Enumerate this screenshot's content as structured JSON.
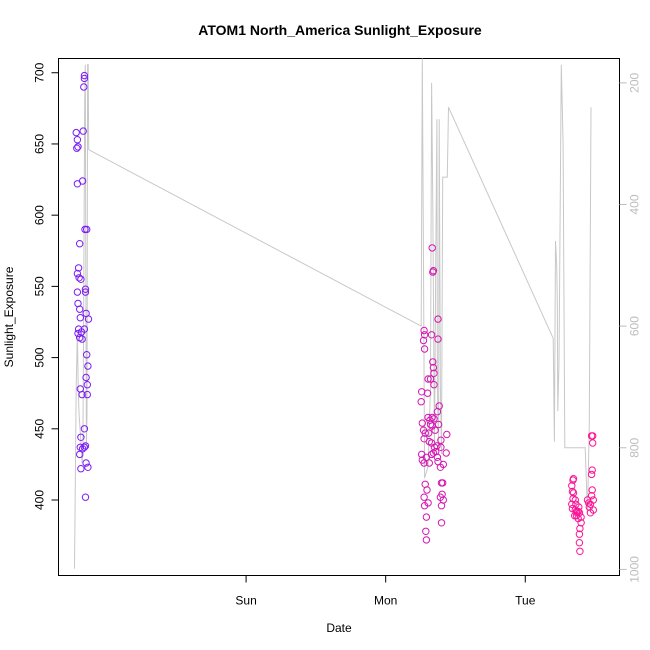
{
  "chart_data": {
    "type": "scatter",
    "title": "ATOM1 North_America Sunlight_Exposure",
    "xlabel": "Date",
    "ylabel": "Sunlight_Exposure",
    "x_ticks": [
      "Sun",
      "Mon",
      "Tue"
    ],
    "y_ticks_left": [
      "400",
      "450",
      "500",
      "550",
      "600",
      "650",
      "700"
    ],
    "y_ticks_right": [
      "200",
      "400",
      "600",
      "800",
      "1000"
    ],
    "ylim_left": [
      347,
      710
    ],
    "ylim_right": [
      1010,
      160
    ],
    "x_unit": "hours_since_sat_00",
    "xlim": [
      -8.25,
      88.2
    ],
    "grid": false,
    "colors": {
      "series_start": "#7a1cf6",
      "series_end": "#ff1493",
      "line": "#c8c8c8",
      "axis": "#000000",
      "right_axis": "#bdbdbd"
    },
    "scatter": [
      [
        -5.2,
        658
      ],
      [
        -5.0,
        653
      ],
      [
        -5.1,
        647
      ],
      [
        -4.9,
        648
      ],
      [
        -5.0,
        622
      ],
      [
        -4.6,
        580
      ],
      [
        -4.8,
        563
      ],
      [
        -5.0,
        559
      ],
      [
        -4.7,
        556
      ],
      [
        -4.4,
        555
      ],
      [
        -5.0,
        546
      ],
      [
        -4.9,
        538
      ],
      [
        -4.6,
        534
      ],
      [
        -4.5,
        528
      ],
      [
        -4.8,
        520
      ],
      [
        -4.3,
        518
      ],
      [
        -4.9,
        517
      ],
      [
        -4.6,
        514
      ],
      [
        -4.2,
        513
      ],
      [
        -4.5,
        478
      ],
      [
        -4.2,
        474
      ],
      [
        -4.4,
        444
      ],
      [
        -4.5,
        437
      ],
      [
        -4.6,
        432
      ],
      [
        -4.1,
        436
      ],
      [
        -4.4,
        422
      ],
      [
        -3.8,
        696
      ],
      [
        -3.8,
        698
      ],
      [
        -3.9,
        690
      ],
      [
        -4.0,
        659
      ],
      [
        -4.1,
        624
      ],
      [
        -3.7,
        590
      ],
      [
        -3.4,
        590
      ],
      [
        -3.6,
        548
      ],
      [
        -3.6,
        546
      ],
      [
        -3.5,
        531
      ],
      [
        -3.1,
        527
      ],
      [
        -3.8,
        520
      ],
      [
        -3.4,
        502
      ],
      [
        -3.2,
        494
      ],
      [
        -3.5,
        486
      ],
      [
        -3.3,
        481
      ],
      [
        -3.3,
        474
      ],
      [
        -3.8,
        450
      ],
      [
        -3.6,
        438
      ],
      [
        -3.8,
        437
      ],
      [
        -3.5,
        426
      ],
      [
        -3.2,
        423
      ],
      [
        -3.6,
        402
      ],
      [
        54.2,
        476
      ],
      [
        54.1,
        469
      ],
      [
        54.3,
        454
      ],
      [
        54.5,
        449
      ],
      [
        54.8,
        447
      ],
      [
        54.6,
        443
      ],
      [
        54.2,
        432
      ],
      [
        55.0,
        430
      ],
      [
        54.3,
        428
      ],
      [
        54.6,
        426
      ],
      [
        54.8,
        411
      ],
      [
        55.1,
        407
      ],
      [
        54.6,
        402
      ],
      [
        55.3,
        398
      ],
      [
        54.7,
        396
      ],
      [
        55.0,
        388
      ],
      [
        54.9,
        378
      ],
      [
        55.0,
        372
      ],
      [
        54.6,
        519
      ],
      [
        54.7,
        516
      ],
      [
        54.5,
        512
      ],
      [
        54.7,
        506
      ],
      [
        55.3,
        485
      ],
      [
        55.7,
        485
      ],
      [
        55.2,
        475
      ],
      [
        55.3,
        458
      ],
      [
        55.6,
        456
      ],
      [
        55.7,
        453
      ],
      [
        55.4,
        447
      ],
      [
        55.5,
        441
      ],
      [
        55.9,
        440
      ],
      [
        55.9,
        432
      ],
      [
        55.5,
        426
      ],
      [
        56.2,
        561
      ],
      [
        56.1,
        560
      ],
      [
        56.0,
        577
      ],
      [
        55.9,
        516
      ],
      [
        56.1,
        497
      ],
      [
        56.2,
        493
      ],
      [
        56.3,
        489
      ],
      [
        56.3,
        481
      ],
      [
        56.0,
        458
      ],
      [
        56.3,
        457
      ],
      [
        56.0,
        452
      ],
      [
        56.5,
        449
      ],
      [
        56.4,
        437
      ],
      [
        56.2,
        433
      ],
      [
        56.8,
        438
      ],
      [
        56.6,
        434
      ],
      [
        57.0,
        527
      ],
      [
        57.0,
        513
      ],
      [
        56.9,
        462
      ],
      [
        57.2,
        466
      ],
      [
        57.1,
        453
      ],
      [
        56.9,
        430
      ],
      [
        57.0,
        427
      ],
      [
        57.5,
        442
      ],
      [
        57.5,
        437
      ],
      [
        57.4,
        423
      ],
      [
        57.6,
        412
      ],
      [
        57.7,
        404
      ],
      [
        57.4,
        402
      ],
      [
        57.6,
        396
      ],
      [
        57.9,
        400
      ],
      [
        57.8,
        412
      ],
      [
        57.9,
        425
      ],
      [
        57.6,
        384
      ],
      [
        58.5,
        446
      ],
      [
        58.4,
        433
      ],
      [
        80.2,
        414
      ],
      [
        80.3,
        415
      ],
      [
        80.0,
        410
      ],
      [
        80.1,
        406
      ],
      [
        80.3,
        405
      ],
      [
        80.2,
        401
      ],
      [
        80.0,
        397
      ],
      [
        80.1,
        394
      ],
      [
        80.6,
        400
      ],
      [
        80.7,
        397
      ],
      [
        80.6,
        393
      ],
      [
        80.8,
        392
      ],
      [
        80.9,
        391
      ],
      [
        80.5,
        389
      ],
      [
        80.8,
        389
      ],
      [
        81.1,
        392
      ],
      [
        81.2,
        395
      ],
      [
        81.3,
        391
      ],
      [
        81.1,
        387
      ],
      [
        81.4,
        380
      ],
      [
        81.3,
        376
      ],
      [
        81.6,
        388
      ],
      [
        81.6,
        384
      ],
      [
        81.3,
        370
      ],
      [
        81.4,
        364
      ],
      [
        82.7,
        400
      ],
      [
        82.9,
        398
      ],
      [
        83.0,
        395
      ],
      [
        83.2,
        397
      ],
      [
        83.4,
        403
      ],
      [
        83.2,
        391
      ],
      [
        83.5,
        407
      ],
      [
        83.4,
        418
      ],
      [
        83.6,
        445
      ],
      [
        83.4,
        445
      ],
      [
        83.6,
        440
      ],
      [
        83.5,
        421
      ],
      [
        83.7,
        400
      ],
      [
        83.7,
        393
      ]
    ],
    "line": [
      [
        -5.5,
        999
      ],
      [
        -5.2,
        700
      ],
      [
        -5.0,
        610
      ],
      [
        -4.85,
        710
      ],
      [
        -4.7,
        745
      ],
      [
        -4.5,
        775
      ],
      [
        -4.35,
        800
      ],
      [
        -4.2,
        825
      ],
      [
        -4.05,
        810
      ],
      [
        -3.95,
        620
      ],
      [
        -3.85,
        430
      ],
      [
        -3.75,
        230
      ],
      [
        -3.65,
        170
      ],
      [
        -3.55,
        500
      ],
      [
        -3.45,
        800
      ],
      [
        -3.35,
        745
      ],
      [
        -3.25,
        170
      ],
      [
        -3.15,
        170
      ],
      [
        -3.05,
        310
      ],
      [
        54.1,
        600
      ],
      [
        54.3,
        160
      ],
      [
        54.5,
        500
      ],
      [
        54.7,
        850
      ],
      [
        55.3,
        830
      ],
      [
        55.7,
        700
      ],
      [
        55.9,
        200
      ],
      [
        56.1,
        400
      ],
      [
        56.4,
        810
      ],
      [
        56.6,
        500
      ],
      [
        56.8,
        260
      ],
      [
        56.9,
        700
      ],
      [
        57.1,
        800
      ],
      [
        57.2,
        260
      ],
      [
        57.4,
        700
      ],
      [
        57.6,
        810
      ],
      [
        57.8,
        355
      ],
      [
        58.6,
        355
      ],
      [
        58.8,
        240
      ],
      [
        76.8,
        620
      ],
      [
        77.0,
        790
      ],
      [
        77.2,
        460
      ],
      [
        77.4,
        500
      ],
      [
        77.5,
        560
      ],
      [
        77.6,
        740
      ],
      [
        77.8,
        660
      ],
      [
        78.2,
        170
      ],
      [
        78.5,
        300
      ],
      [
        78.8,
        800
      ],
      [
        80.3,
        800
      ],
      [
        82.3,
        800
      ],
      [
        82.7,
        910
      ],
      [
        83.0,
        760
      ],
      [
        83.3,
        240
      ]
    ]
  }
}
